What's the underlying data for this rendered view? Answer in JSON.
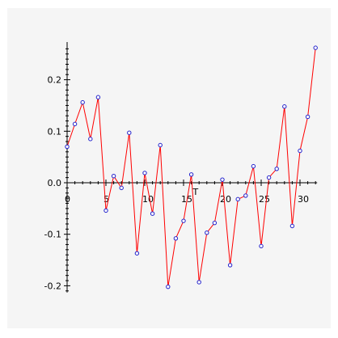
{
  "chart_data": {
    "type": "line",
    "xlabel": "T",
    "ylabel": "",
    "xlim": [
      0,
      32
    ],
    "ylim": [
      -0.21,
      0.27
    ],
    "x_ticks": [
      0,
      5,
      10,
      15,
      20,
      25,
      30
    ],
    "y_ticks": [
      -0.2,
      -0.1,
      0.0,
      0.1,
      0.2
    ],
    "x_tick_labels": [
      "0",
      "5",
      "10",
      "15",
      "20",
      "25",
      "30"
    ],
    "y_tick_labels": [
      "-0.2",
      "-0.1",
      "0.0",
      "0.1",
      "0.2"
    ],
    "grid": false,
    "line_color": "#ff0000",
    "marker_color": "#2222cc",
    "background_color": "#f5f5f5",
    "x": [
      0,
      1,
      2,
      3,
      4,
      5,
      6,
      7,
      8,
      9,
      10,
      11,
      12,
      13,
      14,
      15,
      16,
      17,
      18,
      19,
      20,
      21,
      22,
      23,
      24,
      25,
      26,
      27,
      28,
      29,
      30,
      31,
      32
    ],
    "y": [
      0.07,
      0.114,
      0.156,
      0.085,
      0.166,
      -0.054,
      0.013,
      -0.01,
      0.097,
      -0.137,
      0.019,
      -0.06,
      0.073,
      -0.202,
      -0.108,
      -0.074,
      0.016,
      -0.193,
      -0.097,
      -0.078,
      0.006,
      -0.16,
      -0.032,
      -0.025,
      0.032,
      -0.123,
      0.01,
      0.027,
      0.148,
      -0.084,
      0.062,
      0.128,
      0.262
    ]
  }
}
